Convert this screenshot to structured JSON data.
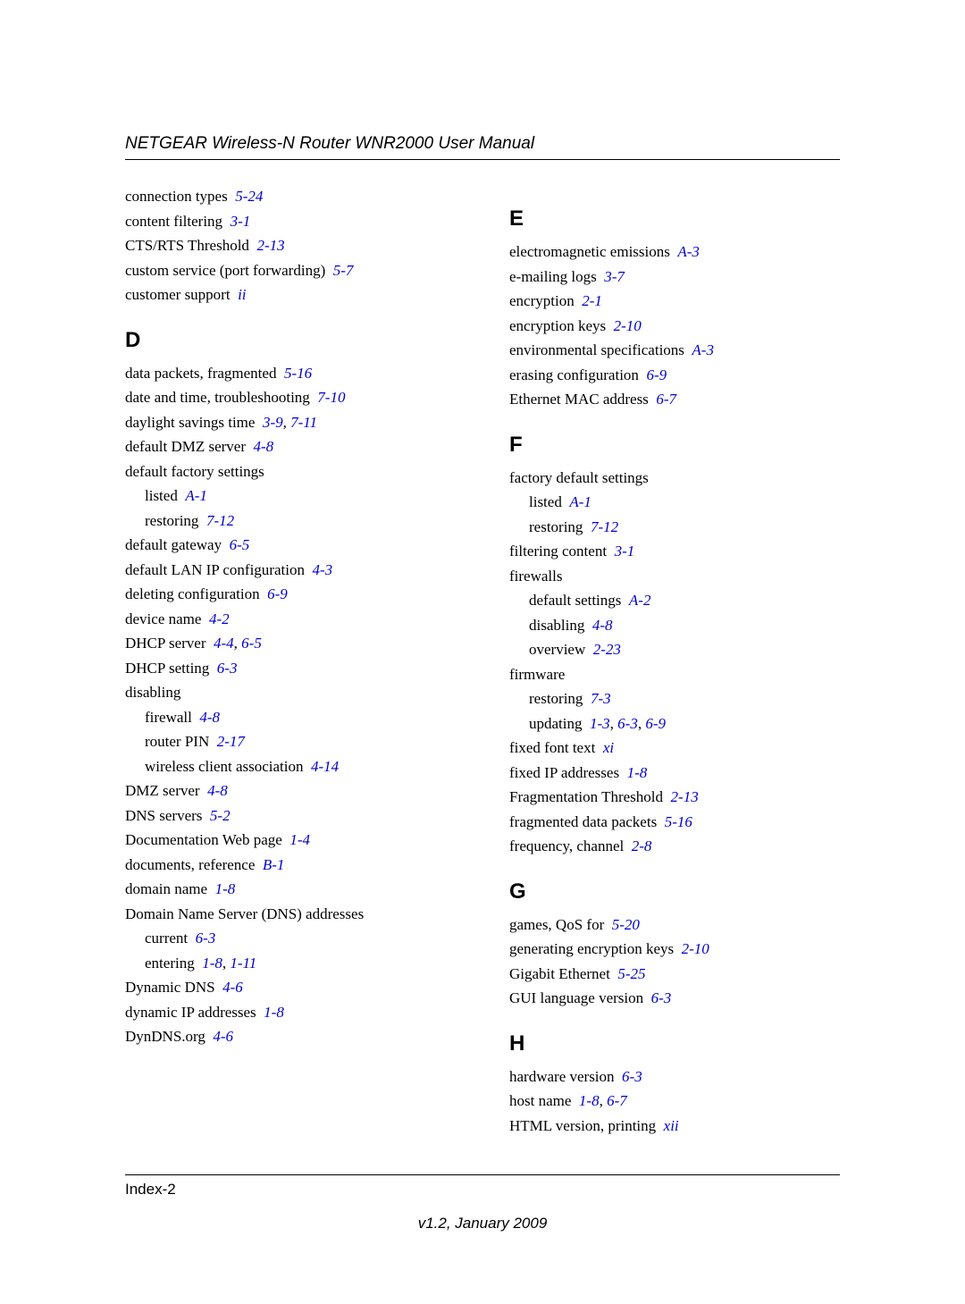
{
  "header_title": "NETGEAR Wireless-N Router WNR2000 User Manual",
  "footer_page": "Index-2",
  "footer_version": "v1.2, January 2009",
  "link_color": "#0000cc",
  "text_color": "#000000",
  "left": [
    {
      "type": "entry",
      "text": "connection types",
      "refs": [
        "5-24"
      ]
    },
    {
      "type": "entry",
      "text": "content filtering",
      "refs": [
        "3-1"
      ]
    },
    {
      "type": "entry",
      "text": "CTS/RTS Threshold",
      "refs": [
        "2-13"
      ]
    },
    {
      "type": "entry",
      "text": "custom service (port forwarding)",
      "refs": [
        "5-7"
      ]
    },
    {
      "type": "entry",
      "text": "customer support",
      "refs": [
        "ii"
      ]
    },
    {
      "type": "letter",
      "text": "D"
    },
    {
      "type": "entry",
      "text": "data packets, fragmented",
      "refs": [
        "5-16"
      ]
    },
    {
      "type": "entry",
      "text": "date and time, troubleshooting",
      "refs": [
        "7-10"
      ]
    },
    {
      "type": "entry",
      "text": "daylight savings time",
      "refs": [
        "3-9",
        "7-11"
      ]
    },
    {
      "type": "entry",
      "text": "default DMZ server",
      "refs": [
        "4-8"
      ]
    },
    {
      "type": "entry",
      "text": "default factory settings",
      "refs": []
    },
    {
      "type": "sub",
      "text": "listed",
      "refs": [
        "A-1"
      ]
    },
    {
      "type": "sub",
      "text": "restoring",
      "refs": [
        "7-12"
      ]
    },
    {
      "type": "entry",
      "text": "default gateway",
      "refs": [
        "6-5"
      ]
    },
    {
      "type": "entry",
      "text": "default LAN IP configuration",
      "refs": [
        "4-3"
      ]
    },
    {
      "type": "entry",
      "text": "deleting configuration",
      "refs": [
        "6-9"
      ]
    },
    {
      "type": "entry",
      "text": "device name",
      "refs": [
        "4-2"
      ]
    },
    {
      "type": "entry",
      "text": "DHCP server",
      "refs": [
        "4-4",
        "6-5"
      ]
    },
    {
      "type": "entry",
      "text": "DHCP setting",
      "refs": [
        "6-3"
      ]
    },
    {
      "type": "entry",
      "text": "disabling",
      "refs": []
    },
    {
      "type": "sub",
      "text": "firewall",
      "refs": [
        "4-8"
      ]
    },
    {
      "type": "sub",
      "text": "router PIN",
      "refs": [
        "2-17"
      ]
    },
    {
      "type": "sub",
      "text": "wireless client association",
      "refs": [
        "4-14"
      ]
    },
    {
      "type": "entry",
      "text": "DMZ server",
      "refs": [
        "4-8"
      ]
    },
    {
      "type": "entry",
      "text": "DNS servers",
      "refs": [
        "5-2"
      ]
    },
    {
      "type": "entry",
      "text": "Documentation Web page",
      "refs": [
        "1-4"
      ]
    },
    {
      "type": "entry",
      "text": "documents, reference",
      "refs": [
        "B-1"
      ]
    },
    {
      "type": "entry",
      "text": "domain name",
      "refs": [
        "1-8"
      ]
    },
    {
      "type": "entry",
      "text": "Domain Name Server (DNS) addresses",
      "refs": []
    },
    {
      "type": "sub",
      "text": "current",
      "refs": [
        "6-3"
      ]
    },
    {
      "type": "sub",
      "text": "entering",
      "refs": [
        "1-8",
        "1-11"
      ]
    },
    {
      "type": "entry",
      "text": "Dynamic DNS",
      "refs": [
        "4-6"
      ]
    },
    {
      "type": "entry",
      "text": "dynamic IP addresses",
      "refs": [
        "1-8"
      ]
    },
    {
      "type": "entry",
      "text": "DynDNS.org",
      "refs": [
        "4-6"
      ]
    }
  ],
  "right": [
    {
      "type": "letter",
      "text": "E"
    },
    {
      "type": "entry",
      "text": "electromagnetic emissions",
      "refs": [
        "A-3"
      ]
    },
    {
      "type": "entry",
      "text": "e-mailing logs",
      "refs": [
        "3-7"
      ]
    },
    {
      "type": "entry",
      "text": "encryption",
      "refs": [
        "2-1"
      ]
    },
    {
      "type": "entry",
      "text": "encryption keys",
      "refs": [
        "2-10"
      ]
    },
    {
      "type": "entry",
      "text": "environmental specifications",
      "refs": [
        "A-3"
      ]
    },
    {
      "type": "entry",
      "text": "erasing configuration",
      "refs": [
        "6-9"
      ]
    },
    {
      "type": "entry",
      "text": "Ethernet MAC address",
      "refs": [
        "6-7"
      ]
    },
    {
      "type": "letter",
      "text": "F"
    },
    {
      "type": "entry",
      "text": "factory default settings",
      "refs": []
    },
    {
      "type": "sub",
      "text": "listed",
      "refs": [
        "A-1"
      ]
    },
    {
      "type": "sub",
      "text": "restoring",
      "refs": [
        "7-12"
      ]
    },
    {
      "type": "entry",
      "text": "filtering content",
      "refs": [
        "3-1"
      ]
    },
    {
      "type": "entry",
      "text": "firewalls",
      "refs": []
    },
    {
      "type": "sub",
      "text": "default settings",
      "refs": [
        "A-2"
      ]
    },
    {
      "type": "sub",
      "text": "disabling",
      "refs": [
        "4-8"
      ]
    },
    {
      "type": "sub",
      "text": "overview",
      "refs": [
        "2-23"
      ]
    },
    {
      "type": "entry",
      "text": "firmware",
      "refs": []
    },
    {
      "type": "sub",
      "text": "restoring",
      "refs": [
        "7-3"
      ]
    },
    {
      "type": "sub",
      "text": "updating",
      "refs": [
        "1-3",
        "6-3",
        "6-9"
      ]
    },
    {
      "type": "entry",
      "text": "fixed font text",
      "refs": [
        "xi"
      ]
    },
    {
      "type": "entry",
      "text": "fixed IP addresses",
      "refs": [
        "1-8"
      ]
    },
    {
      "type": "entry",
      "text": "Fragmentation Threshold",
      "refs": [
        "2-13"
      ]
    },
    {
      "type": "entry",
      "text": "fragmented data packets",
      "refs": [
        "5-16"
      ]
    },
    {
      "type": "entry",
      "text": "frequency, channel",
      "refs": [
        "2-8"
      ]
    },
    {
      "type": "letter",
      "text": "G"
    },
    {
      "type": "entry",
      "text": "games, QoS for",
      "refs": [
        "5-20"
      ]
    },
    {
      "type": "entry",
      "text": "generating encryption keys",
      "refs": [
        "2-10"
      ]
    },
    {
      "type": "entry",
      "text": "Gigabit Ethernet",
      "refs": [
        "5-25"
      ]
    },
    {
      "type": "entry",
      "text": "GUI language version",
      "refs": [
        "6-3"
      ]
    },
    {
      "type": "letter",
      "text": "H"
    },
    {
      "type": "entry",
      "text": "hardware version",
      "refs": [
        "6-3"
      ]
    },
    {
      "type": "entry",
      "text": "host name",
      "refs": [
        "1-8",
        "6-7"
      ]
    },
    {
      "type": "entry",
      "text": "HTML version, printing",
      "refs": [
        "xii"
      ]
    }
  ]
}
